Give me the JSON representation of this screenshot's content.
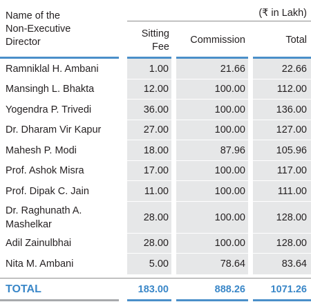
{
  "table": {
    "header": {
      "name": [
        "Name of the",
        "Non-Executive",
        "Director"
      ],
      "unit": "(₹ in Lakh)",
      "sitting_fee": [
        "Sitting",
        "Fee"
      ],
      "commission": "Commission",
      "total": "Total"
    },
    "rows": [
      {
        "name": [
          "Ramniklal H. Ambani"
        ],
        "sitting_fee": "1.00",
        "commission": "21.66",
        "total": "22.66"
      },
      {
        "name": [
          "Mansingh L. Bhakta"
        ],
        "sitting_fee": "12.00",
        "commission": "100.00",
        "total": "112.00"
      },
      {
        "name": [
          "Yogendra P. Trivedi"
        ],
        "sitting_fee": "36.00",
        "commission": "100.00",
        "total": "136.00"
      },
      {
        "name": [
          "Dr. Dharam Vir Kapur"
        ],
        "sitting_fee": "27.00",
        "commission": "100.00",
        "total": "127.00"
      },
      {
        "name": [
          "Mahesh P. Modi"
        ],
        "sitting_fee": "18.00",
        "commission": "87.96",
        "total": "105.96"
      },
      {
        "name": [
          "Prof. Ashok Misra"
        ],
        "sitting_fee": "17.00",
        "commission": "100.00",
        "total": "117.00"
      },
      {
        "name": [
          "Prof. Dipak C. Jain"
        ],
        "sitting_fee": "11.00",
        "commission": "100.00",
        "total": "111.00"
      },
      {
        "name": [
          "Dr. Raghunath A.",
          "Mashelkar"
        ],
        "sitting_fee": "28.00",
        "commission": "100.00",
        "total": "128.00"
      },
      {
        "name": [
          "Adil Zainulbhai"
        ],
        "sitting_fee": "28.00",
        "commission": "100.00",
        "total": "128.00"
      },
      {
        "name": [
          "Nita M. Ambani"
        ],
        "sitting_fee": "5.00",
        "commission": "78.64",
        "total": "83.64"
      }
    ],
    "total_row": {
      "label": "TOTAL",
      "sitting_fee": "183.00",
      "commission": "888.26",
      "total": "1071.26"
    },
    "colors": {
      "accent": "#4a8fc9",
      "total_text": "#3a87c8",
      "shade": "#e6e7e8"
    }
  }
}
